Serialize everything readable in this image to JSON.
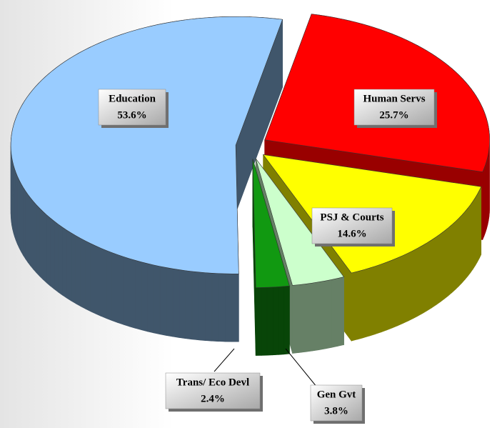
{
  "chart_data": {
    "type": "pie3d",
    "categories": [
      "Human Servs",
      "PSJ & Courts",
      "Gen Gvt",
      "Trans/ Eco Devl",
      "Education"
    ],
    "values": [
      25.7,
      14.6,
      3.8,
      2.4,
      53.6
    ],
    "value_labels": [
      "25.7%",
      "14.6%",
      "3.8%",
      "2.4%",
      "53.6%"
    ],
    "colors": [
      "#ff0000",
      "#ffff00",
      "#ccffcc",
      "#119911",
      "#99ccff"
    ]
  }
}
